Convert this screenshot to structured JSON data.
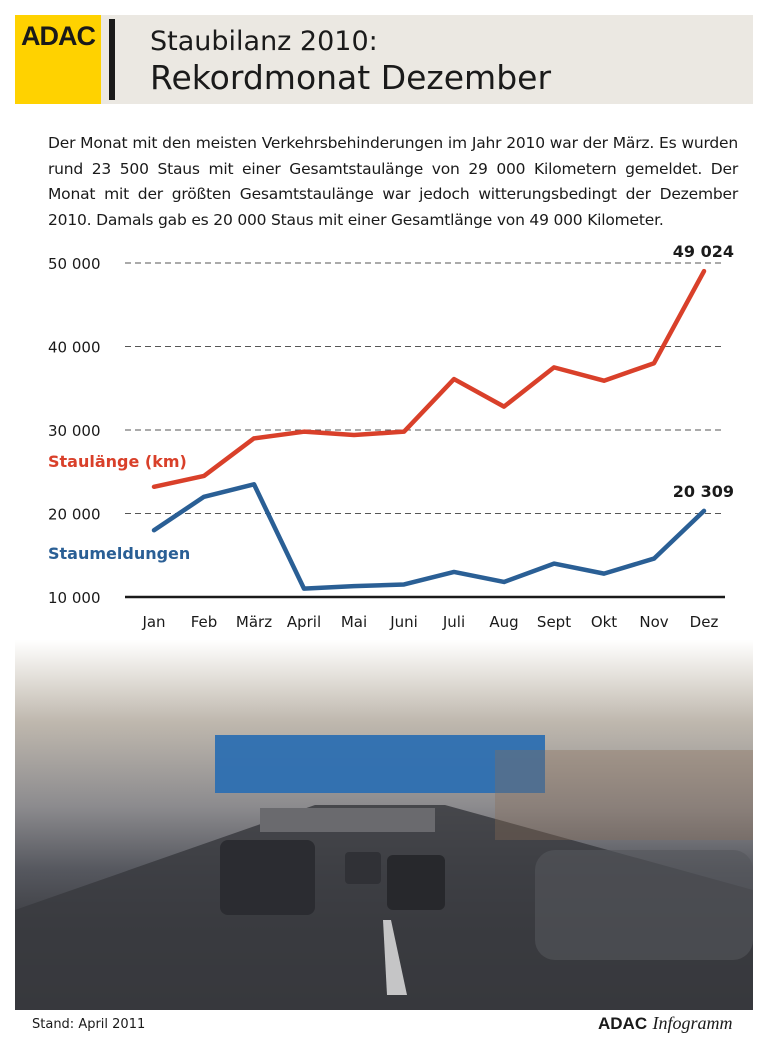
{
  "header": {
    "logo_text": "ADAC",
    "title_line1": "Staubilanz 2010:",
    "title_line2": "Rekordmonat Dezember"
  },
  "description": "Der Monat mit den meisten Verkehrsbehinderungen im Jahr 2010 war der März. Es wurden rund 23 500 Staus mit einer Gesamtstaulänge von 29 000 Kilometern gemeldet. Der Monat mit der größten Gesamtstaulänge war jedoch witterungsbedingt der Dezember 2010. Damals gab es 20 000 Staus mit einer Gesamtlänge von 49 000 Kilometer.",
  "chart_data": {
    "type": "line",
    "categories": [
      "Jan",
      "Feb",
      "März",
      "April",
      "Mai",
      "Juni",
      "Juli",
      "Aug",
      "Sept",
      "Okt",
      "Nov",
      "Dez"
    ],
    "ylim": [
      10000,
      50000
    ],
    "yticks": [
      10000,
      20000,
      30000,
      40000,
      50000
    ],
    "ytick_labels": [
      "10 000",
      "20 000",
      "30 000",
      "40 000",
      "50 000"
    ],
    "grid": true,
    "series": [
      {
        "name": "Staulänge (km)",
        "color": "#d9402a",
        "values": [
          23200,
          24500,
          29000,
          29800,
          29400,
          29800,
          36100,
          32800,
          37500,
          35900,
          38000,
          49024
        ],
        "end_label": "49 024"
      },
      {
        "name": "Staumeldungen",
        "color": "#2a5f95",
        "values": [
          18000,
          22000,
          23500,
          11000,
          11300,
          11500,
          13000,
          11800,
          14000,
          12800,
          14600,
          20309
        ],
        "end_label": "20 309"
      }
    ]
  },
  "footer": {
    "stand": "Stand: April 2011",
    "brand": "ADAC",
    "info": "Infogramm"
  }
}
